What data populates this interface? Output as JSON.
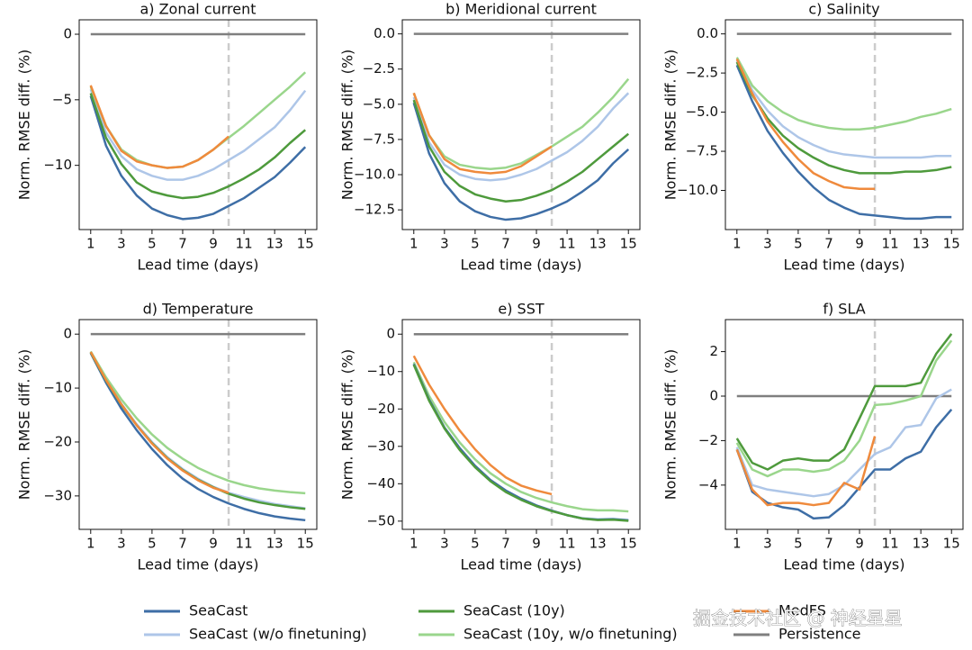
{
  "chart_data": [
    {
      "type": "line",
      "title": "a) Zonal current",
      "x_label": "Lead time (days)",
      "y_label": "Norm. RMSE diff. (%)",
      "x": [
        1,
        2,
        3,
        4,
        5,
        6,
        7,
        8,
        9,
        10,
        11,
        12,
        13,
        14,
        15
      ],
      "xlim": [
        0.25,
        15.75
      ],
      "xticks": [
        1,
        3,
        5,
        7,
        9,
        11,
        13,
        15
      ],
      "ylim": [
        -14.9,
        1.1
      ],
      "yticks": [
        {
          "value": -10,
          "label": "−10"
        },
        {
          "value": -5,
          "label": "−5"
        },
        0
      ],
      "vline": 10,
      "grid": false,
      "series": [
        {
          "name": "SeaCast",
          "color": "#3e6ea6",
          "values": [
            -4.7,
            -8.5,
            -10.8,
            -12.3,
            -13.3,
            -13.8,
            -14.1,
            -14.0,
            -13.7,
            -13.1,
            -12.5,
            -11.7,
            -10.9,
            -9.8,
            -8.6
          ]
        },
        {
          "name": "SeaCast (w/o finetuning)",
          "color": "#aec6e8",
          "values": [
            -4.2,
            -7.5,
            -9.3,
            -10.3,
            -10.8,
            -11.1,
            -11.1,
            -10.8,
            -10.3,
            -9.6,
            -8.9,
            -8.0,
            -7.1,
            -5.8,
            -4.3
          ]
        },
        {
          "name": "SeaCast (10y)",
          "color": "#4e9a3c",
          "values": [
            -4.5,
            -7.9,
            -9.9,
            -11.3,
            -12.0,
            -12.3,
            -12.5,
            -12.4,
            -12.1,
            -11.6,
            -11.0,
            -10.3,
            -9.4,
            -8.3,
            -7.3
          ]
        },
        {
          "name": "SeaCast (10y, w/o finetuning)",
          "color": "#9ad68c",
          "values": [
            -4.0,
            -7.0,
            -8.8,
            -9.6,
            -10.0,
            -10.2,
            -10.1,
            -9.6,
            -8.8,
            -7.9,
            -7.0,
            -6.0,
            -5.0,
            -4.0,
            -2.9
          ]
        },
        {
          "name": "MedFS",
          "color": "#ef8a3c",
          "values": [
            -3.9,
            -7.0,
            -8.9,
            -9.7,
            -10.0,
            -10.2,
            -10.1,
            -9.6,
            -8.8,
            -7.8,
            null,
            null,
            null,
            null,
            null
          ]
        },
        {
          "name": "Persistence",
          "color": "#7f7f7f",
          "values": [
            0,
            0,
            0,
            0,
            0,
            0,
            0,
            0,
            0,
            0,
            0,
            0,
            0,
            0,
            0
          ]
        }
      ]
    },
    {
      "type": "line",
      "title": "b) Meridional current",
      "x_label": "Lead time (days)",
      "y_label": "Norm. RMSE diff. (%)",
      "x": [
        1,
        2,
        3,
        4,
        5,
        6,
        7,
        8,
        9,
        10,
        11,
        12,
        13,
        14,
        15
      ],
      "xlim": [
        0.25,
        15.75
      ],
      "xticks": [
        1,
        3,
        5,
        7,
        9,
        11,
        13,
        15
      ],
      "ylim": [
        -13.9,
        1.0
      ],
      "yticks": [
        {
          "value": -12.5,
          "label": "−12.5"
        },
        {
          "value": -10,
          "label": "−10.0"
        },
        {
          "value": -7.5,
          "label": "−7.5"
        },
        {
          "value": -5,
          "label": "−5.0"
        },
        {
          "value": -2.5,
          "label": "−2.5"
        },
        {
          "value": 0,
          "label": "0.0"
        }
      ],
      "vline": 10,
      "grid": false,
      "series": [
        {
          "name": "SeaCast",
          "color": "#3e6ea6",
          "values": [
            -4.9,
            -8.5,
            -10.6,
            -11.9,
            -12.6,
            -13.0,
            -13.2,
            -13.1,
            -12.8,
            -12.4,
            -11.9,
            -11.2,
            -10.4,
            -9.2,
            -8.2
          ]
        },
        {
          "name": "SeaCast (w/o finetuning)",
          "color": "#aec6e8",
          "values": [
            -4.5,
            -7.7,
            -9.3,
            -10.0,
            -10.3,
            -10.4,
            -10.3,
            -10.0,
            -9.6,
            -9.0,
            -8.4,
            -7.6,
            -6.6,
            -5.3,
            -4.2
          ]
        },
        {
          "name": "SeaCast (10y)",
          "color": "#4e9a3c",
          "values": [
            -4.7,
            -8.0,
            -9.8,
            -10.8,
            -11.4,
            -11.7,
            -11.9,
            -11.8,
            -11.5,
            -11.1,
            -10.5,
            -9.8,
            -8.9,
            -8.0,
            -7.1
          ]
        },
        {
          "name": "SeaCast (10y, w/o finetuning)",
          "color": "#9ad68c",
          "values": [
            -4.2,
            -7.2,
            -8.7,
            -9.3,
            -9.5,
            -9.6,
            -9.5,
            -9.2,
            -8.6,
            -8.0,
            -7.3,
            -6.6,
            -5.6,
            -4.5,
            -3.2
          ]
        },
        {
          "name": "MedFS",
          "color": "#ef8a3c",
          "values": [
            -4.2,
            -7.2,
            -8.9,
            -9.6,
            -9.8,
            -9.9,
            -9.8,
            -9.4,
            -8.7,
            -8.0,
            null,
            null,
            null,
            null,
            null
          ]
        },
        {
          "name": "Persistence",
          "color": "#7f7f7f",
          "values": [
            0,
            0,
            0,
            0,
            0,
            0,
            0,
            0,
            0,
            0,
            0,
            0,
            0,
            0,
            0
          ]
        }
      ]
    },
    {
      "type": "line",
      "title": "c) Salinity",
      "x_label": "Lead time (days)",
      "y_label": "Norm. RMSE diff. (%)",
      "x": [
        1,
        2,
        3,
        4,
        5,
        6,
        7,
        8,
        9,
        10,
        11,
        12,
        13,
        14,
        15
      ],
      "xlim": [
        0.25,
        15.75
      ],
      "xticks": [
        1,
        3,
        5,
        7,
        9,
        11,
        13,
        15
      ],
      "ylim": [
        -12.5,
        0.9
      ],
      "yticks": [
        {
          "value": -10,
          "label": "−10.0"
        },
        {
          "value": -7.5,
          "label": "−7.5"
        },
        {
          "value": -5,
          "label": "−5.0"
        },
        {
          "value": -2.5,
          "label": "−2.5"
        },
        {
          "value": 0,
          "label": "0.0"
        }
      ],
      "vline": 10,
      "grid": false,
      "series": [
        {
          "name": "SeaCast",
          "color": "#3e6ea6",
          "values": [
            -2.0,
            -4.3,
            -6.2,
            -7.6,
            -8.8,
            -9.8,
            -10.6,
            -11.1,
            -11.5,
            -11.6,
            -11.7,
            -11.8,
            -11.8,
            -11.7,
            -11.7
          ]
        },
        {
          "name": "SeaCast (w/o finetuning)",
          "color": "#aec6e8",
          "values": [
            -1.7,
            -3.6,
            -4.9,
            -5.9,
            -6.6,
            -7.1,
            -7.5,
            -7.7,
            -7.8,
            -7.9,
            -7.9,
            -7.9,
            -7.9,
            -7.8,
            -7.8
          ]
        },
        {
          "name": "SeaCast (10y)",
          "color": "#4e9a3c",
          "values": [
            -1.8,
            -3.9,
            -5.4,
            -6.5,
            -7.3,
            -7.9,
            -8.4,
            -8.7,
            -8.9,
            -8.9,
            -8.9,
            -8.8,
            -8.8,
            -8.7,
            -8.5
          ]
        },
        {
          "name": "SeaCast (10y, w/o finetuning)",
          "color": "#9ad68c",
          "values": [
            -1.5,
            -3.3,
            -4.3,
            -5.0,
            -5.5,
            -5.8,
            -6.0,
            -6.1,
            -6.1,
            -6.0,
            -5.8,
            -5.6,
            -5.3,
            -5.1,
            -4.8
          ]
        },
        {
          "name": "MedFS",
          "color": "#ef8a3c",
          "values": [
            -1.6,
            -3.8,
            -5.6,
            -6.9,
            -8.0,
            -8.9,
            -9.4,
            -9.8,
            -9.9,
            -9.9,
            null,
            null,
            null,
            null,
            null
          ]
        },
        {
          "name": "Persistence",
          "color": "#7f7f7f",
          "values": [
            0,
            0,
            0,
            0,
            0,
            0,
            0,
            0,
            0,
            0,
            0,
            0,
            0,
            0,
            0
          ]
        }
      ]
    },
    {
      "type": "line",
      "title": "d) Temperature",
      "x_label": "Lead time (days)",
      "y_label": "Norm. RMSE diff. (%)",
      "x": [
        1,
        2,
        3,
        4,
        5,
        6,
        7,
        8,
        9,
        10,
        11,
        12,
        13,
        14,
        15
      ],
      "xlim": [
        0.25,
        15.75
      ],
      "xticks": [
        1,
        3,
        5,
        7,
        9,
        11,
        13,
        15
      ],
      "ylim": [
        -36.2,
        2.7
      ],
      "yticks": [
        {
          "value": -30,
          "label": "−30"
        },
        {
          "value": -20,
          "label": "−20"
        },
        {
          "value": -10,
          "label": "−10"
        },
        0
      ],
      "vline": 10,
      "grid": false,
      "series": [
        {
          "name": "SeaCast",
          "color": "#3e6ea6",
          "values": [
            -3.5,
            -9.0,
            -13.8,
            -17.8,
            -21.3,
            -24.3,
            -26.8,
            -28.7,
            -30.2,
            -31.4,
            -32.4,
            -33.2,
            -33.8,
            -34.2,
            -34.5
          ]
        },
        {
          "name": "SeaCast (w/o finetuning)",
          "color": "#aec6e8",
          "values": [
            -3.3,
            -8.4,
            -12.9,
            -16.7,
            -20.0,
            -22.8,
            -25.0,
            -26.8,
            -28.3,
            -29.4,
            -30.2,
            -30.9,
            -31.5,
            -31.9,
            -32.3
          ]
        },
        {
          "name": "SeaCast (10y)",
          "color": "#4e9a3c",
          "values": [
            -3.4,
            -8.6,
            -13.1,
            -16.9,
            -20.2,
            -23.0,
            -25.2,
            -27.0,
            -28.4,
            -29.6,
            -30.5,
            -31.2,
            -31.7,
            -32.1,
            -32.4
          ]
        },
        {
          "name": "SeaCast (10y, w/o finetuning)",
          "color": "#9ad68c",
          "values": [
            -3.2,
            -8.0,
            -12.1,
            -15.6,
            -18.6,
            -21.1,
            -23.1,
            -24.8,
            -26.1,
            -27.2,
            -28.0,
            -28.6,
            -29.0,
            -29.3,
            -29.5
          ]
        },
        {
          "name": "MedFS",
          "color": "#ef8a3c",
          "values": [
            -3.3,
            -8.5,
            -13.0,
            -16.9,
            -20.3,
            -23.1,
            -25.3,
            -27.1,
            -28.5,
            -29.4,
            null,
            null,
            null,
            null,
            null
          ]
        },
        {
          "name": "Persistence",
          "color": "#7f7f7f",
          "values": [
            0,
            0,
            0,
            0,
            0,
            0,
            0,
            0,
            0,
            0,
            0,
            0,
            0,
            0,
            0
          ]
        }
      ]
    },
    {
      "type": "line",
      "title": "e) SST",
      "x_label": "Lead time (days)",
      "y_label": "Norm. RMSE diff. (%)",
      "x": [
        1,
        2,
        3,
        4,
        5,
        6,
        7,
        8,
        9,
        10,
        11,
        12,
        13,
        14,
        15
      ],
      "xlim": [
        0.25,
        15.75
      ],
      "xticks": [
        1,
        3,
        5,
        7,
        9,
        11,
        13,
        15
      ],
      "ylim": [
        -52.2,
        3.9
      ],
      "yticks": [
        {
          "value": -50,
          "label": "−50"
        },
        {
          "value": -40,
          "label": "−40"
        },
        {
          "value": -30,
          "label": "−30"
        },
        {
          "value": -20,
          "label": "−20"
        },
        {
          "value": -10,
          "label": "−10"
        },
        0
      ],
      "vline": 10,
      "grid": false,
      "series": [
        {
          "name": "SeaCast",
          "color": "#3e6ea6",
          "values": [
            -8.0,
            -17.5,
            -25.0,
            -30.5,
            -35.2,
            -39.0,
            -41.8,
            -44.0,
            -45.8,
            -47.2,
            -48.4,
            -49.3,
            -49.6,
            -49.5,
            -49.8
          ]
        },
        {
          "name": "SeaCast (w/o finetuning)",
          "color": "#aec6e8",
          "values": [
            -8.0,
            -17.5,
            -25.0,
            -30.8,
            -35.4,
            -39.2,
            -42.0,
            -44.2,
            -46.0,
            -47.3,
            -48.4,
            -49.2,
            -49.5,
            -49.4,
            -49.7
          ]
        },
        {
          "name": "SeaCast (10y)",
          "color": "#4e9a3c",
          "values": [
            -8.2,
            -17.8,
            -25.2,
            -31.0,
            -35.6,
            -39.3,
            -42.2,
            -44.3,
            -46.0,
            -47.3,
            -48.4,
            -49.3,
            -49.7,
            -49.6,
            -49.9
          ]
        },
        {
          "name": "SeaCast (10y, w/o finetuning)",
          "color": "#9ad68c",
          "values": [
            -7.5,
            -16.5,
            -23.5,
            -29.0,
            -33.5,
            -37.2,
            -40.0,
            -42.2,
            -43.8,
            -45.0,
            -46.0,
            -46.8,
            -47.1,
            -47.1,
            -47.4
          ]
        },
        {
          "name": "MedFS",
          "color": "#ef8a3c",
          "values": [
            -5.8,
            -13.5,
            -20.0,
            -25.8,
            -30.8,
            -35.0,
            -38.3,
            -40.5,
            -41.8,
            -42.8,
            null,
            null,
            null,
            null,
            null
          ]
        },
        {
          "name": "Persistence",
          "color": "#7f7f7f",
          "values": [
            0,
            0,
            0,
            0,
            0,
            0,
            0,
            0,
            0,
            0,
            0,
            0,
            0,
            0,
            0
          ]
        }
      ]
    },
    {
      "type": "line",
      "title": "f) SLA",
      "x_label": "Lead time (days)",
      "y_label": "Norm. RMSE diff. (%)",
      "x": [
        1,
        2,
        3,
        4,
        5,
        6,
        7,
        8,
        9,
        10,
        11,
        12,
        13,
        14,
        15
      ],
      "xlim": [
        0.25,
        15.75
      ],
      "xticks": [
        1,
        3,
        5,
        7,
        9,
        11,
        13,
        15
      ],
      "ylim": [
        -5.99,
        3.44
      ],
      "yticks": [
        {
          "value": -4,
          "label": "−4"
        },
        {
          "value": -2,
          "label": "−2"
        },
        0,
        2
      ],
      "vline": 10,
      "grid": false,
      "series": [
        {
          "name": "SeaCast",
          "color": "#3e6ea6",
          "values": [
            -2.4,
            -4.3,
            -4.8,
            -5.0,
            -5.1,
            -5.5,
            -5.45,
            -4.9,
            -4.1,
            -3.3,
            -3.3,
            -2.8,
            -2.5,
            -1.4,
            -0.6
          ]
        },
        {
          "name": "SeaCast (w/o finetuning)",
          "color": "#aec6e8",
          "values": [
            -2.3,
            -4.0,
            -4.2,
            -4.3,
            -4.4,
            -4.5,
            -4.4,
            -4.0,
            -3.3,
            -2.6,
            -2.3,
            -1.4,
            -1.3,
            -0.1,
            0.3
          ]
        },
        {
          "name": "SeaCast (10y)",
          "color": "#4e9a3c",
          "values": [
            -1.9,
            -3.0,
            -3.3,
            -2.9,
            -2.8,
            -2.9,
            -2.9,
            -2.4,
            -1.0,
            0.45,
            0.45,
            0.45,
            0.6,
            1.9,
            2.8
          ]
        },
        {
          "name": "SeaCast (10y, w/o finetuning)",
          "color": "#9ad68c",
          "values": [
            -2.1,
            -3.3,
            -3.6,
            -3.3,
            -3.3,
            -3.4,
            -3.3,
            -2.9,
            -2.0,
            -0.4,
            -0.35,
            -0.2,
            0.0,
            1.6,
            2.5
          ]
        },
        {
          "name": "MedFS",
          "color": "#ef8a3c",
          "values": [
            -2.4,
            -4.2,
            -4.9,
            -4.8,
            -4.8,
            -4.9,
            -4.8,
            -3.9,
            -4.2,
            -1.8,
            null,
            null,
            null,
            null,
            null
          ]
        },
        {
          "name": "Persistence",
          "color": "#7f7f7f",
          "values": [
            0,
            0,
            0,
            0,
            0,
            0,
            0,
            0,
            0,
            0,
            0,
            0,
            0,
            0,
            0
          ]
        }
      ]
    }
  ],
  "watermark": "掘金技术社区 @ 神经星星"
}
